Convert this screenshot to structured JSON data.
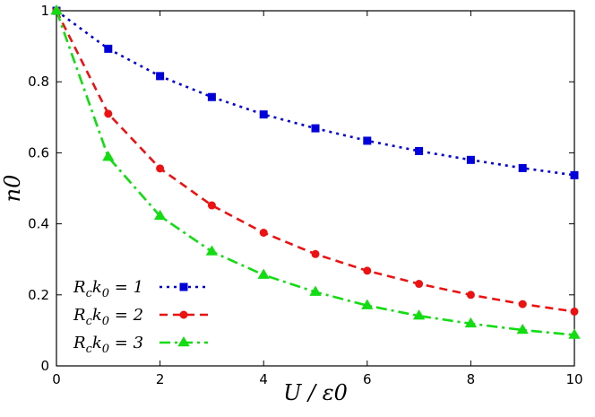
{
  "chart_data": {
    "type": "line",
    "xlabel": "U / ε0",
    "ylabel": "n0",
    "xlim": [
      0,
      10
    ],
    "ylim": [
      0,
      1
    ],
    "xticks": [
      0,
      2,
      4,
      6,
      8,
      10
    ],
    "yticks": [
      0,
      0.2,
      0.4,
      0.6,
      0.8,
      1
    ],
    "ytick_labels": [
      "0",
      "0.2",
      "0.4",
      "0.6",
      "0.8",
      "1"
    ],
    "grid": false,
    "legend_position": "bottom-left",
    "x": [
      0,
      1,
      2,
      3,
      4,
      5,
      6,
      7,
      8,
      9,
      10
    ],
    "series": [
      {
        "name": "Rck0 = 1",
        "legend_parts": [
          "R",
          "c",
          "k",
          "0",
          " = 1"
        ],
        "color": "#0000dd",
        "marker": "square",
        "line": "dotted",
        "values": [
          1.0,
          0.893,
          0.816,
          0.757,
          0.708,
          0.669,
          0.634,
          0.605,
          0.58,
          0.557,
          0.537
        ]
      },
      {
        "name": "Rck0 = 2",
        "legend_parts": [
          "R",
          "c",
          "k",
          "0",
          " = 2"
        ],
        "color": "#ee1111",
        "marker": "circle",
        "line": "dashed",
        "values": [
          1.0,
          0.71,
          0.556,
          0.452,
          0.375,
          0.315,
          0.268,
          0.231,
          0.2,
          0.174,
          0.153
        ]
      },
      {
        "name": "Rck0 = 3",
        "legend_parts": [
          "R",
          "c",
          "k",
          "0",
          " = 3"
        ],
        "color": "#11dd11",
        "marker": "triangle",
        "line": "dash-dot",
        "values": [
          1.0,
          0.588,
          0.422,
          0.322,
          0.256,
          0.208,
          0.17,
          0.141,
          0.119,
          0.101,
          0.087
        ]
      }
    ]
  }
}
